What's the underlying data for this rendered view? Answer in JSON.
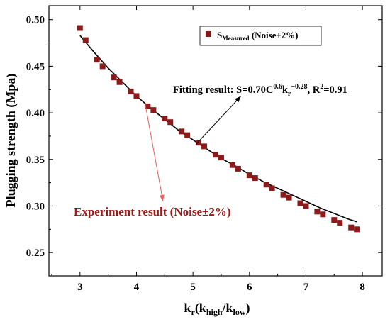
{
  "chart_data": {
    "type": "scatter",
    "xlabel": {
      "main": "k",
      "sub1": "r",
      "mid": "(k",
      "sub2": "high",
      "slash": "/k",
      "sub3": "low",
      "end": ")"
    },
    "ylabel": "Plugging strength (Mpa)",
    "xlim": [
      2.45,
      8.35
    ],
    "ylim": [
      0.225,
      0.515
    ],
    "xticks": [
      3,
      4,
      5,
      6,
      7,
      8
    ],
    "yticks": [
      0.25,
      0.3,
      0.35,
      0.4,
      0.45,
      0.5
    ],
    "xtick_labels": [
      "3",
      "4",
      "5",
      "6",
      "7",
      "8"
    ],
    "ytick_labels": [
      "0.25",
      "0.30",
      "0.35",
      "0.40",
      "0.45",
      "0.50"
    ],
    "grid": false,
    "legend_position": "top-right",
    "legend": {
      "main": "S",
      "sub": "Measured",
      "rest": " (Noise±2%)"
    },
    "marker_color": "#8b1a1a",
    "fit_color": "#000000",
    "arrow_color_fit": "#000000",
    "arrow_color_exp": "#e06060",
    "series": [
      {
        "name": "SMeasured (Noise±2%)",
        "points": [
          [
            3.0,
            0.491
          ],
          [
            3.1,
            0.478
          ],
          [
            3.3,
            0.457
          ],
          [
            3.4,
            0.45
          ],
          [
            3.6,
            0.438
          ],
          [
            3.7,
            0.433
          ],
          [
            3.9,
            0.423
          ],
          [
            4.0,
            0.418
          ],
          [
            4.2,
            0.407
          ],
          [
            4.3,
            0.403
          ],
          [
            4.5,
            0.394
          ],
          [
            4.6,
            0.39
          ],
          [
            4.8,
            0.38
          ],
          [
            4.9,
            0.376
          ],
          [
            5.1,
            0.368
          ],
          [
            5.2,
            0.364
          ],
          [
            5.4,
            0.355
          ],
          [
            5.5,
            0.352
          ],
          [
            5.7,
            0.344
          ],
          [
            5.8,
            0.34
          ],
          [
            6.0,
            0.333
          ],
          [
            6.1,
            0.33
          ],
          [
            6.3,
            0.323
          ],
          [
            6.4,
            0.319
          ],
          [
            6.6,
            0.312
          ],
          [
            6.7,
            0.309
          ],
          [
            6.9,
            0.303
          ],
          [
            7.0,
            0.3
          ],
          [
            7.2,
            0.294
          ],
          [
            7.3,
            0.291
          ],
          [
            7.5,
            0.285
          ],
          [
            7.6,
            0.282
          ],
          [
            7.8,
            0.277
          ],
          [
            7.9,
            0.275
          ]
        ]
      }
    ],
    "fit": {
      "x": [
        3.0,
        3.25,
        3.5,
        3.75,
        4.0,
        4.25,
        4.5,
        4.75,
        5.0,
        5.25,
        5.5,
        5.75,
        6.0,
        6.25,
        6.5,
        6.75,
        7.0,
        7.25,
        7.5,
        7.75,
        7.9
      ],
      "y": [
        0.483,
        0.465,
        0.448,
        0.433,
        0.418,
        0.405,
        0.393,
        0.381,
        0.371,
        0.361,
        0.351,
        0.343,
        0.334,
        0.326,
        0.319,
        0.312,
        0.305,
        0.298,
        0.292,
        0.286,
        0.283
      ]
    },
    "annotations": {
      "fit": {
        "prefix": "Fitting result: S=0.70C",
        "exp1": "0.6",
        "mid": "k",
        "sub": "r",
        "exp2": "−0.28",
        "r2_prefix": ", R",
        "r2_exp": "2",
        "r2_value": "=0.91",
        "arrow_from": [
          5.05,
          0.366
        ],
        "arrow_to": [
          5.85,
          0.418
        ]
      },
      "experiment": {
        "text": "Experiment result (Noise±2%)",
        "arrow_from": [
          4.15,
          0.411
        ],
        "arrow_to": [
          4.47,
          0.305
        ]
      }
    }
  }
}
